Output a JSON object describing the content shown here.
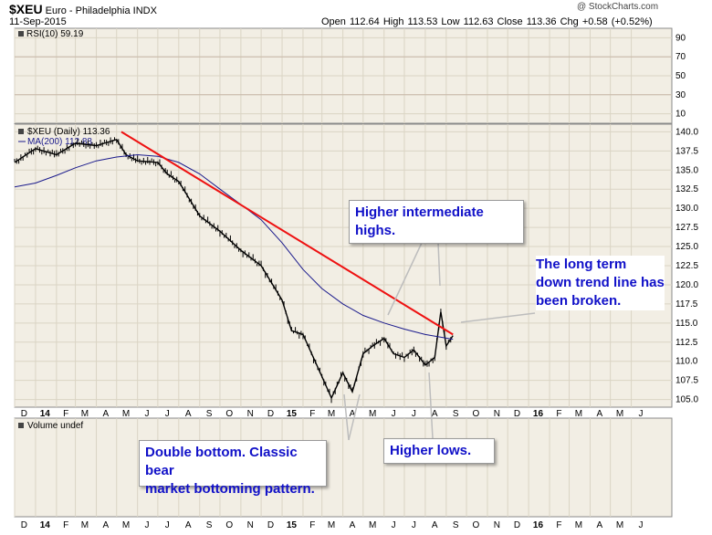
{
  "header": {
    "symbol": "$XEU",
    "name": "Euro - Philadelphia INDX",
    "date": "11-Sep-2015",
    "quote": "Open 112.64  High 113.53  Low 112.63  Close 113.36  Chg +0.58 (+0.52%)",
    "watermark": "@ StockCharts.com"
  },
  "rsi_panel": {
    "label": "RSI(10) 59.19",
    "ticks": [
      "90",
      "70",
      "50",
      "30",
      "10"
    ]
  },
  "price_panel": {
    "label": "$XEU (Daily) 113.36",
    "ma_label": "MA(200) 112.88",
    "ticks": [
      "140.0",
      "137.5",
      "135.0",
      "132.5",
      "130.0",
      "127.5",
      "125.0",
      "122.5",
      "120.0",
      "117.5",
      "115.0",
      "112.5",
      "110.0",
      "107.5",
      "105.0"
    ]
  },
  "volume_panel": {
    "label": "Volume undef"
  },
  "x_axis": {
    "months": [
      "D",
      "14",
      "F",
      "M",
      "A",
      "M",
      "J",
      "J",
      "A",
      "S",
      "O",
      "N",
      "D",
      "15",
      "F",
      "M",
      "A",
      "M",
      "J",
      "J",
      "A",
      "S",
      "O",
      "N",
      "D",
      "16",
      "F",
      "M",
      "A",
      "M",
      "J"
    ]
  },
  "annotations": {
    "higher_highs": [
      "Higher intermediate",
      "highs."
    ],
    "trend_line": [
      "The long term",
      "down trend line has",
      "been broken."
    ],
    "double_bottom": [
      "Double bottom. Classic bear",
      "market bottoming pattern."
    ],
    "higher_lows": "Higher lows."
  },
  "colors": {
    "panel_bg": "#f2eee4",
    "grid": "#dad4c4",
    "price_bar": "#000000",
    "ma_line": "#1a1a8c",
    "trend_line": "#ee1111",
    "annotation_text": "#1010c8"
  },
  "chart_data": {
    "type": "line",
    "series": [
      {
        "name": "$XEU (Daily)",
        "x": [
          "2013-12-01",
          "2014-01-01",
          "2014-02-01",
          "2014-03-01",
          "2014-04-01",
          "2014-05-01",
          "2014-05-15",
          "2014-06-01",
          "2014-07-01",
          "2014-07-15",
          "2014-08-01",
          "2014-09-01",
          "2014-10-01",
          "2014-11-01",
          "2014-12-01",
          "2015-01-01",
          "2015-01-15",
          "2015-02-01",
          "2015-03-01",
          "2015-03-15",
          "2015-04-01",
          "2015-04-15",
          "2015-05-01",
          "2015-05-15",
          "2015-06-01",
          "2015-06-15",
          "2015-07-01",
          "2015-07-15",
          "2015-08-01",
          "2015-08-15",
          "2015-08-24",
          "2015-09-01",
          "2015-09-11"
        ],
        "values": [
          136.0,
          137.8,
          137.0,
          138.5,
          138.2,
          139.0,
          137.0,
          136.2,
          136.0,
          134.5,
          133.5,
          129.0,
          127.0,
          124.5,
          122.5,
          118.0,
          114.0,
          113.5,
          108.0,
          105.2,
          108.5,
          106.0,
          111.0,
          112.0,
          113.0,
          111.0,
          110.5,
          111.5,
          109.5,
          110.5,
          116.5,
          112.0,
          113.36
        ]
      },
      {
        "name": "MA(200)",
        "x": [
          "2013-12-01",
          "2014-01-01",
          "2014-02-01",
          "2014-03-01",
          "2014-04-01",
          "2014-05-01",
          "2014-06-01",
          "2014-07-01",
          "2014-08-01",
          "2014-09-01",
          "2014-10-01",
          "2014-11-01",
          "2014-12-01",
          "2015-01-01",
          "2015-02-01",
          "2015-03-01",
          "2015-04-01",
          "2015-05-01",
          "2015-06-01",
          "2015-07-01",
          "2015-08-01",
          "2015-09-11"
        ],
        "values": [
          132.8,
          133.3,
          134.3,
          135.3,
          136.2,
          136.7,
          137.0,
          136.8,
          136.0,
          134.5,
          132.5,
          130.5,
          128.5,
          125.5,
          122.0,
          119.5,
          117.5,
          116.0,
          115.0,
          114.2,
          113.5,
          112.88
        ]
      }
    ],
    "trend_line": {
      "start": [
        "2014-05-08",
        140.0
      ],
      "end": [
        "2015-09-11",
        113.5
      ]
    },
    "ylim": [
      104.0,
      141.0
    ],
    "xlim": [
      "2013-12-01",
      "2016-07-31"
    ],
    "rsi": {
      "ylim": [
        0,
        100
      ],
      "last": 59.19
    }
  }
}
